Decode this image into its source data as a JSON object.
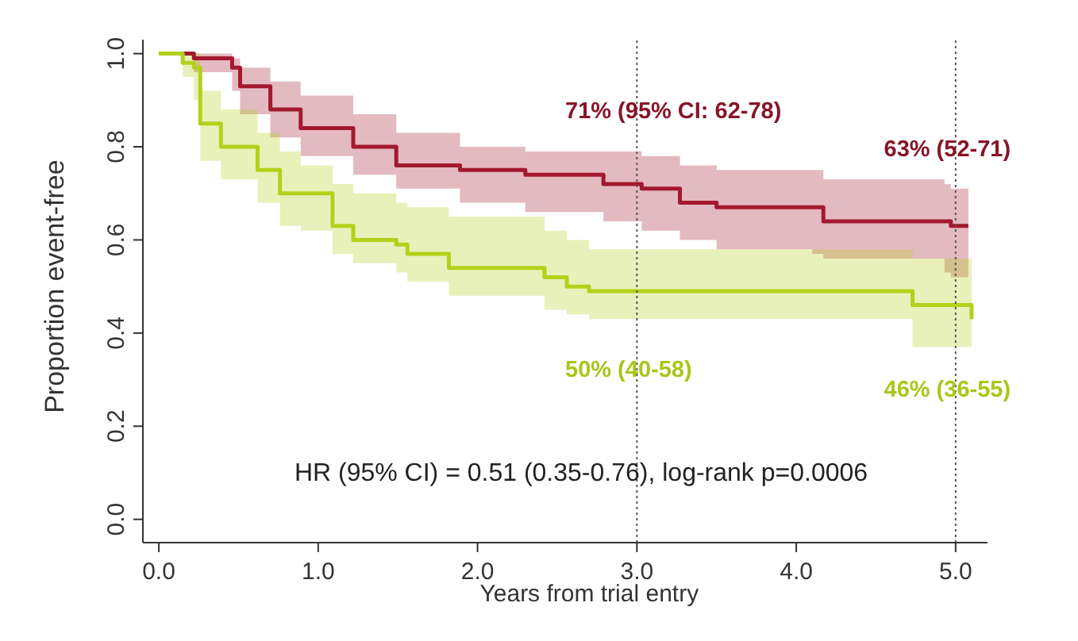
{
  "chart_data": {
    "type": "step",
    "xlabel": "Years from trial entry",
    "ylabel": "Proportion event-free",
    "xlim": [
      -0.1,
      5.2
    ],
    "ylim": [
      -0.05,
      1.03
    ],
    "xticks": [
      {
        "value": 0,
        "label": "0.0"
      },
      {
        "value": 1,
        "label": "1.0"
      },
      {
        "value": 2,
        "label": "2.0"
      },
      {
        "value": 3,
        "label": "3.0"
      },
      {
        "value": 4,
        "label": "4.0"
      },
      {
        "value": 5,
        "label": "5.0"
      }
    ],
    "yticks": [
      {
        "value": 0,
        "label": "0.0"
      },
      {
        "value": 0.2,
        "label": "0.2"
      },
      {
        "value": 0.4,
        "label": "0.4"
      },
      {
        "value": 0.6,
        "label": "0.6"
      },
      {
        "value": 0.8,
        "label": "0.8"
      },
      {
        "value": 1,
        "label": "1.0"
      }
    ],
    "grid": false,
    "series": [
      {
        "color": "#a3192f",
        "x": [
          0,
          0.22,
          0.46,
          0.51,
          0.7,
          0.89,
          1.22,
          1.49,
          1.89,
          2.3,
          2.79,
          3.03,
          3.27,
          3.5,
          4.1,
          4.17,
          4.93,
          4.97,
          5.08
        ],
        "values": [
          1.0,
          0.99,
          0.97,
          0.93,
          0.88,
          0.84,
          0.8,
          0.76,
          0.75,
          0.74,
          0.72,
          0.71,
          0.68,
          0.67,
          0.67,
          0.64,
          0.64,
          0.63,
          0.63
        ],
        "lower": [
          1.0,
          0.96,
          0.92,
          0.87,
          0.82,
          0.78,
          0.74,
          0.71,
          0.68,
          0.66,
          0.64,
          0.62,
          0.6,
          0.58,
          0.57,
          0.56,
          0.53,
          0.52,
          0.52
        ],
        "upper": [
          1.0,
          1.0,
          0.99,
          0.97,
          0.94,
          0.91,
          0.87,
          0.83,
          0.8,
          0.79,
          0.79,
          0.78,
          0.76,
          0.75,
          0.75,
          0.73,
          0.72,
          0.71,
          0.71
        ]
      },
      {
        "color": "#b3d11a",
        "x": [
          0,
          0.15,
          0.22,
          0.26,
          0.39,
          0.62,
          0.76,
          0.89,
          1.09,
          1.22,
          1.49,
          1.56,
          1.82,
          2.42,
          2.56,
          2.7,
          4.73,
          5.1
        ],
        "values": [
          1.0,
          0.98,
          0.97,
          0.85,
          0.8,
          0.75,
          0.7,
          0.7,
          0.63,
          0.6,
          0.59,
          0.57,
          0.54,
          0.52,
          0.5,
          0.49,
          0.46,
          0.43
        ],
        "lower": [
          1.0,
          0.95,
          0.9,
          0.77,
          0.73,
          0.68,
          0.63,
          0.62,
          0.57,
          0.55,
          0.53,
          0.51,
          0.48,
          0.45,
          0.44,
          0.43,
          0.37,
          0.37
        ],
        "upper": [
          1.0,
          1.0,
          1.0,
          0.92,
          0.88,
          0.83,
          0.79,
          0.76,
          0.72,
          0.7,
          0.68,
          0.67,
          0.65,
          0.62,
          0.6,
          0.58,
          0.56,
          0.55
        ]
      }
    ],
    "ref_lines": [
      {
        "axis": "x",
        "value": 3,
        "color": "#555555",
        "line_style": "dotted"
      },
      {
        "axis": "x",
        "value": 5,
        "color": "#555555",
        "line_style": "dotted"
      }
    ],
    "annotations": [
      "71% (95% CI: 62-78)",
      "63% (52-71)",
      "50% (40-58)",
      "46% (36-55)",
      "HR (95% CI) = 0.51 (0.35-0.76), log-rank p=0.0006"
    ]
  }
}
